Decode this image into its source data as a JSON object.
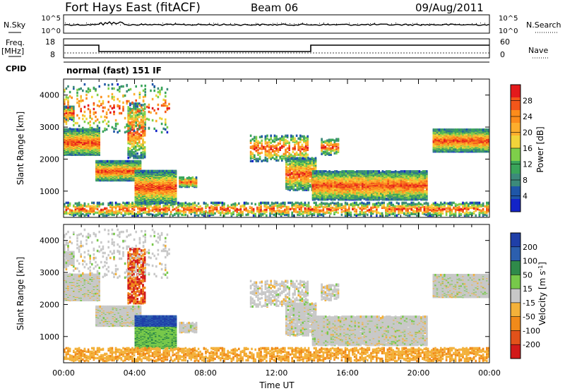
{
  "header": {
    "station": "Fort Hays East (fitACF)",
    "beam": "Beam 06",
    "date": "09/Aug/2011"
  },
  "panels": {
    "nsky_label": "N.Sky",
    "nsearch_label": "N.Search",
    "nsky_ticks": [
      "10^5",
      "10^0"
    ],
    "nsearch_ticks": [
      "10^5",
      "10^0"
    ],
    "freq_label": "Freq.",
    "freq_unit": "[MHz]",
    "freq_ticks": [
      "18",
      "8"
    ],
    "nave_label": "Nave",
    "nave_ticks": [
      "60",
      "0"
    ],
    "cpid_label": "CPID",
    "cpid_text": "normal (fast) 151 IF"
  },
  "chart_data": [
    {
      "type": "heatmap",
      "quantity": "power",
      "ylabel": "Slant Range [km]",
      "colorbar_label": "Power [dB]",
      "colorbar_ticks": [
        "28",
        "24",
        "20",
        "16",
        "12",
        "8",
        "4"
      ],
      "colorbar_colors": [
        "#e41a1c",
        "#f4561a",
        "#fb8c1c",
        "#fdae2d",
        "#f1d43a",
        "#7ecf4a",
        "#3aa55a",
        "#3c8a7a",
        "#1f56a8",
        "#1323c8"
      ],
      "x_ticks": [
        "00:00",
        "04:00",
        "08:00",
        "12:00",
        "16:00",
        "20:00",
        "00:00"
      ],
      "y_ticks": [
        "4000",
        "3000",
        "2000",
        "1000"
      ],
      "ylim": [
        180,
        4500
      ]
    },
    {
      "type": "heatmap",
      "quantity": "velocity",
      "ylabel": "Slant Range [km]",
      "colorbar_label": "Velocity [m s^-1]",
      "colorbar_ticks": [
        "200",
        "100",
        "50",
        "15",
        "-15",
        "-50",
        "-100",
        "-200"
      ],
      "colorbar_colors": [
        "#1f3fa8",
        "#2c5fae",
        "#2f8a4a",
        "#77c84a",
        "#c8c8c8",
        "#f3b13a",
        "#f18a1a",
        "#e2521a",
        "#d21a1a"
      ],
      "x_ticks": [
        "00:00",
        "04:00",
        "08:00",
        "12:00",
        "16:00",
        "20:00",
        "00:00"
      ],
      "y_ticks": [
        "4000",
        "3000",
        "2000",
        "1000"
      ],
      "ylim": [
        180,
        4500
      ],
      "xlabel": "Time UT"
    }
  ]
}
